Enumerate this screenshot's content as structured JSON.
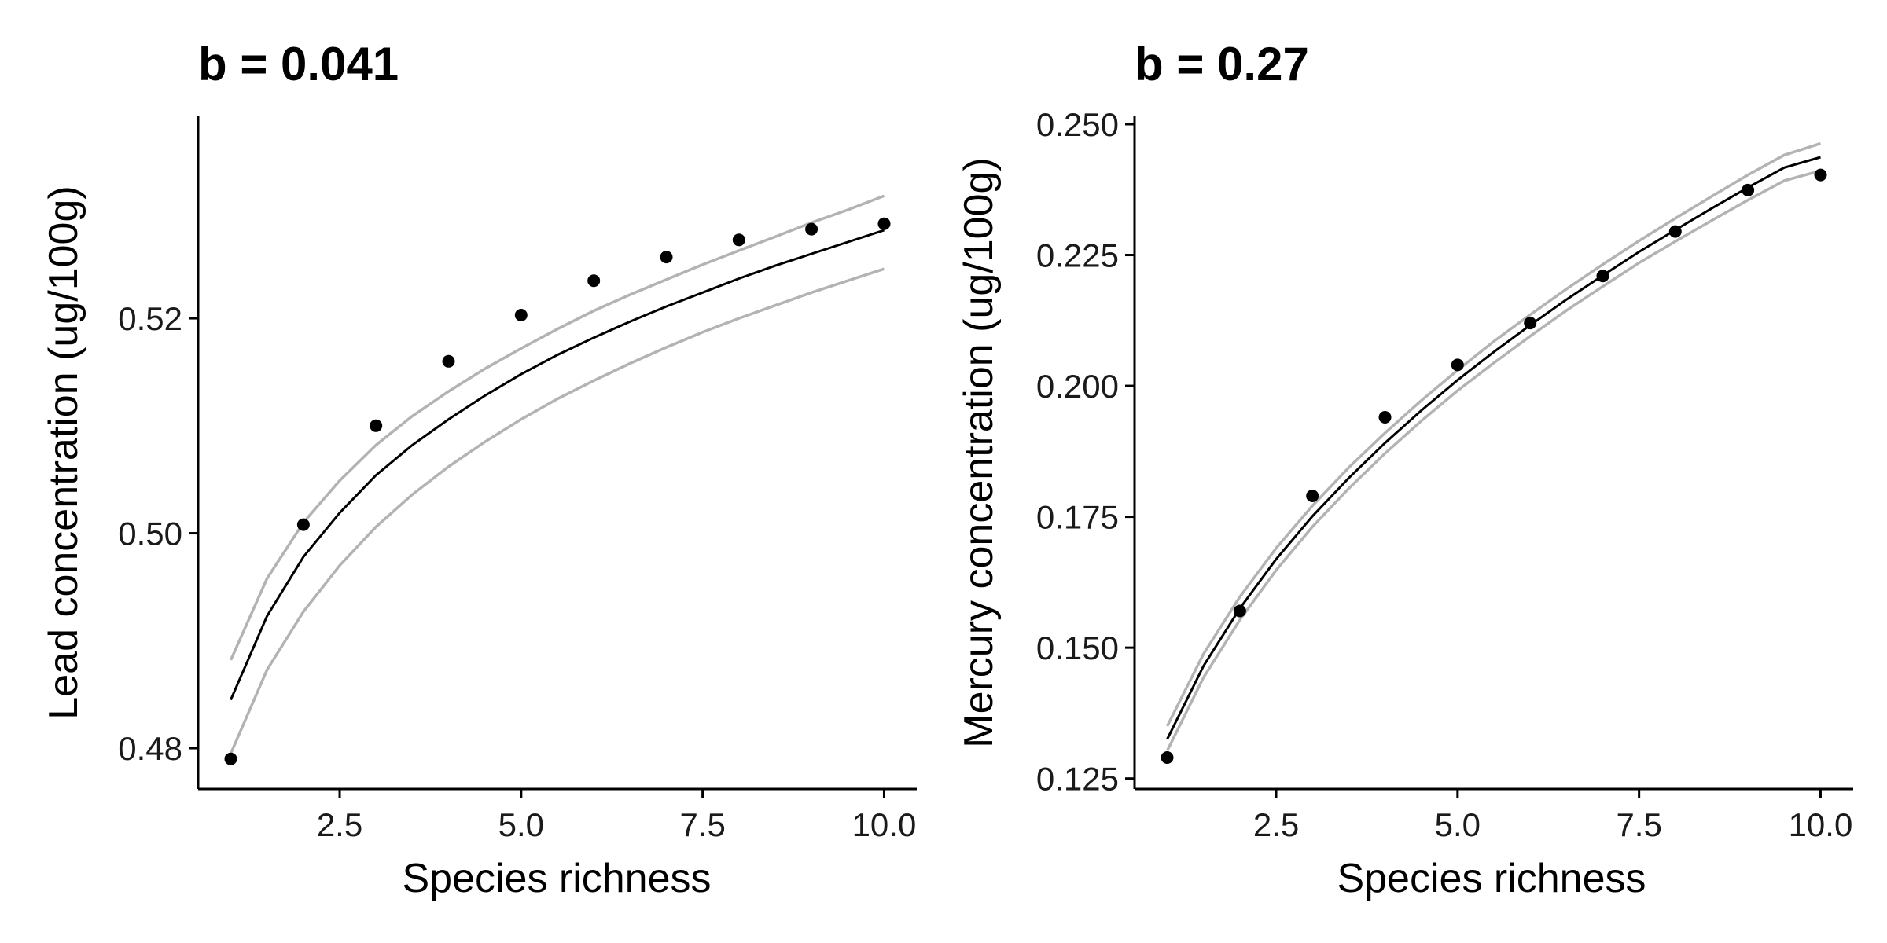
{
  "chart_data": [
    {
      "type": "scatter",
      "title": "b = 0.041",
      "xlabel": "Species richness",
      "ylabel": "Lead concentration (ug/100g)",
      "xlim": [
        0.55,
        10.45
      ],
      "ylim": [
        0.4762,
        0.5388
      ],
      "xticks": [
        2.5,
        5.0,
        7.5,
        10.0
      ],
      "xtick_labels": [
        "2.5",
        "5.0",
        "7.5",
        "10.0"
      ],
      "yticks": [
        0.48,
        0.5,
        0.52
      ],
      "ytick_labels": [
        "0.48",
        "0.50",
        "0.52"
      ],
      "grid": false,
      "legend": "none",
      "points": {
        "x": [
          1,
          2,
          3,
          4,
          5,
          6,
          7,
          8,
          9,
          10
        ],
        "y": [
          0.479,
          0.5008,
          0.51,
          0.516,
          0.5203,
          0.5235,
          0.5257,
          0.5273,
          0.5283,
          0.5288
        ]
      },
      "fit": {
        "x": [
          1,
          1.5,
          2,
          2.5,
          3,
          3.5,
          4,
          4.5,
          5,
          5.5,
          6,
          6.5,
          7,
          7.5,
          8,
          8.5,
          9,
          9.5,
          10
        ],
        "y": [
          0.4845,
          0.4923,
          0.4978,
          0.5019,
          0.5054,
          0.5082,
          0.5106,
          0.5128,
          0.5148,
          0.5166,
          0.5182,
          0.5197,
          0.5211,
          0.5224,
          0.5237,
          0.5249,
          0.526,
          0.5271,
          0.5282
        ]
      },
      "ci_upper": {
        "x": [
          1,
          1.5,
          2,
          2.5,
          3,
          3.5,
          4,
          4.5,
          5,
          5.5,
          6,
          6.5,
          7,
          7.5,
          8,
          8.5,
          9,
          9.5,
          10
        ],
        "y": [
          0.4882,
          0.4958,
          0.501,
          0.5049,
          0.5082,
          0.5109,
          0.5132,
          0.5153,
          0.5172,
          0.519,
          0.5207,
          0.5222,
          0.5236,
          0.525,
          0.5263,
          0.5276,
          0.5289,
          0.5301,
          0.5314
        ]
      },
      "ci_lower": {
        "x": [
          1,
          1.5,
          2,
          2.5,
          3,
          3.5,
          4,
          4.5,
          5,
          5.5,
          6,
          6.5,
          7,
          7.5,
          8,
          8.5,
          9,
          9.5,
          10
        ],
        "y": [
          0.4795,
          0.4873,
          0.4927,
          0.497,
          0.5006,
          0.5036,
          0.5062,
          0.5085,
          0.5106,
          0.5125,
          0.5142,
          0.5158,
          0.5173,
          0.5187,
          0.52,
          0.5212,
          0.5224,
          0.5235,
          0.5246
        ]
      }
    },
    {
      "type": "scatter",
      "title": "b = 0.27",
      "xlabel": "Species richness",
      "ylabel": "Mercury concentration (ug/100g)",
      "xlim": [
        0.55,
        10.45
      ],
      "ylim": [
        0.123,
        0.2515
      ],
      "xticks": [
        2.5,
        5.0,
        7.5,
        10.0
      ],
      "xtick_labels": [
        "2.5",
        "5.0",
        "7.5",
        "10.0"
      ],
      "yticks": [
        0.125,
        0.15,
        0.175,
        0.2,
        0.225,
        0.25
      ],
      "ytick_labels": [
        "0.125",
        "0.150",
        "0.175",
        "0.200",
        "0.225",
        "0.250"
      ],
      "grid": false,
      "legend": "none",
      "points": {
        "x": [
          1,
          2,
          3,
          4,
          5,
          6,
          7,
          8,
          9,
          10
        ],
        "y": [
          0.129,
          0.157,
          0.179,
          0.194,
          0.204,
          0.212,
          0.221,
          0.2295,
          0.2374,
          0.2403
        ]
      },
      "fit": {
        "x": [
          1,
          1.5,
          2,
          2.5,
          3,
          3.5,
          4,
          4.5,
          5,
          5.5,
          6,
          6.5,
          7,
          7.5,
          8,
          8.5,
          9,
          9.5,
          10
        ],
        "y": [
          0.1325,
          0.1465,
          0.1575,
          0.1669,
          0.1751,
          0.1824,
          0.1891,
          0.1953,
          0.2011,
          0.2065,
          0.2116,
          0.2165,
          0.2211,
          0.2256,
          0.2298,
          0.2339,
          0.2379,
          0.2417,
          0.2437
        ]
      },
      "ci_upper": {
        "x": [
          1,
          1.5,
          2,
          2.5,
          3,
          3.5,
          4,
          4.5,
          5,
          5.5,
          6,
          6.5,
          7,
          7.5,
          8,
          8.5,
          9,
          9.5,
          10
        ],
        "y": [
          0.135,
          0.1488,
          0.1597,
          0.169,
          0.1771,
          0.1844,
          0.191,
          0.1972,
          0.203,
          0.2085,
          0.2136,
          0.2185,
          0.2232,
          0.2277,
          0.232,
          0.2362,
          0.2403,
          0.2441,
          0.2463
        ]
      },
      "ci_lower": {
        "x": [
          1,
          1.5,
          2,
          2.5,
          3,
          3.5,
          4,
          4.5,
          5,
          5.5,
          6,
          6.5,
          7,
          7.5,
          8,
          8.5,
          9,
          9.5,
          10
        ],
        "y": [
          0.1303,
          0.1443,
          0.1553,
          0.1648,
          0.1731,
          0.1804,
          0.1871,
          0.1933,
          0.1991,
          0.2044,
          0.2095,
          0.2144,
          0.219,
          0.2235,
          0.2276,
          0.2316,
          0.2355,
          0.2392,
          0.2411
        ]
      }
    }
  ]
}
